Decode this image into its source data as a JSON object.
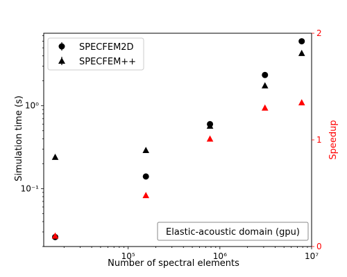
{
  "chart_data": {
    "type": "scatter",
    "xlabel": "Number of spectral elements",
    "ylabel_left": "Simulation time (s)",
    "ylabel_right": "Speedup",
    "xscale": "log",
    "yscale_left": "log",
    "yscale_right": "linear",
    "xlim": [
      12000,
      10000000
    ],
    "ylim_left": [
      0.02,
      7.5
    ],
    "ylim_right": [
      0,
      2
    ],
    "x_ticks": [
      {
        "value": 100000,
        "label": "10⁵"
      },
      {
        "value": 1000000,
        "label": "10⁶"
      },
      {
        "value": 10000000,
        "label": "10⁷"
      }
    ],
    "y_left_ticks": [
      {
        "value": 0.1,
        "label": "10⁻¹"
      },
      {
        "value": 1,
        "label": "10⁰"
      }
    ],
    "y_right_ticks": [
      {
        "value": 0,
        "label": "0"
      },
      {
        "value": 1,
        "label": "1"
      },
      {
        "value": 2,
        "label": "2"
      }
    ],
    "legend_position": "top-left",
    "grid": false,
    "annotation": "Elastic-acoustic domain (gpu)",
    "annotation_position": "bottom-right",
    "series": [
      {
        "name": "SPECFEM2D",
        "marker": "circle",
        "color": "#000000",
        "axis": "left",
        "x": [
          16000,
          156000,
          780000,
          3100000,
          7800000
        ],
        "y": [
          0.026,
          0.14,
          0.6,
          2.35,
          6.0
        ]
      },
      {
        "name": "SPECFEM++",
        "marker": "triangle",
        "color": "#000000",
        "axis": "left",
        "x": [
          16000,
          156000,
          780000,
          3100000,
          7800000
        ],
        "y": [
          0.24,
          0.29,
          0.57,
          1.75,
          4.3
        ]
      },
      {
        "marker": "triangle",
        "color": "#ff0000",
        "axis": "right",
        "x": [
          16000,
          156000,
          780000,
          3100000,
          7800000
        ],
        "y": [
          0.1,
          0.48,
          1.01,
          1.3,
          1.35
        ]
      }
    ]
  }
}
